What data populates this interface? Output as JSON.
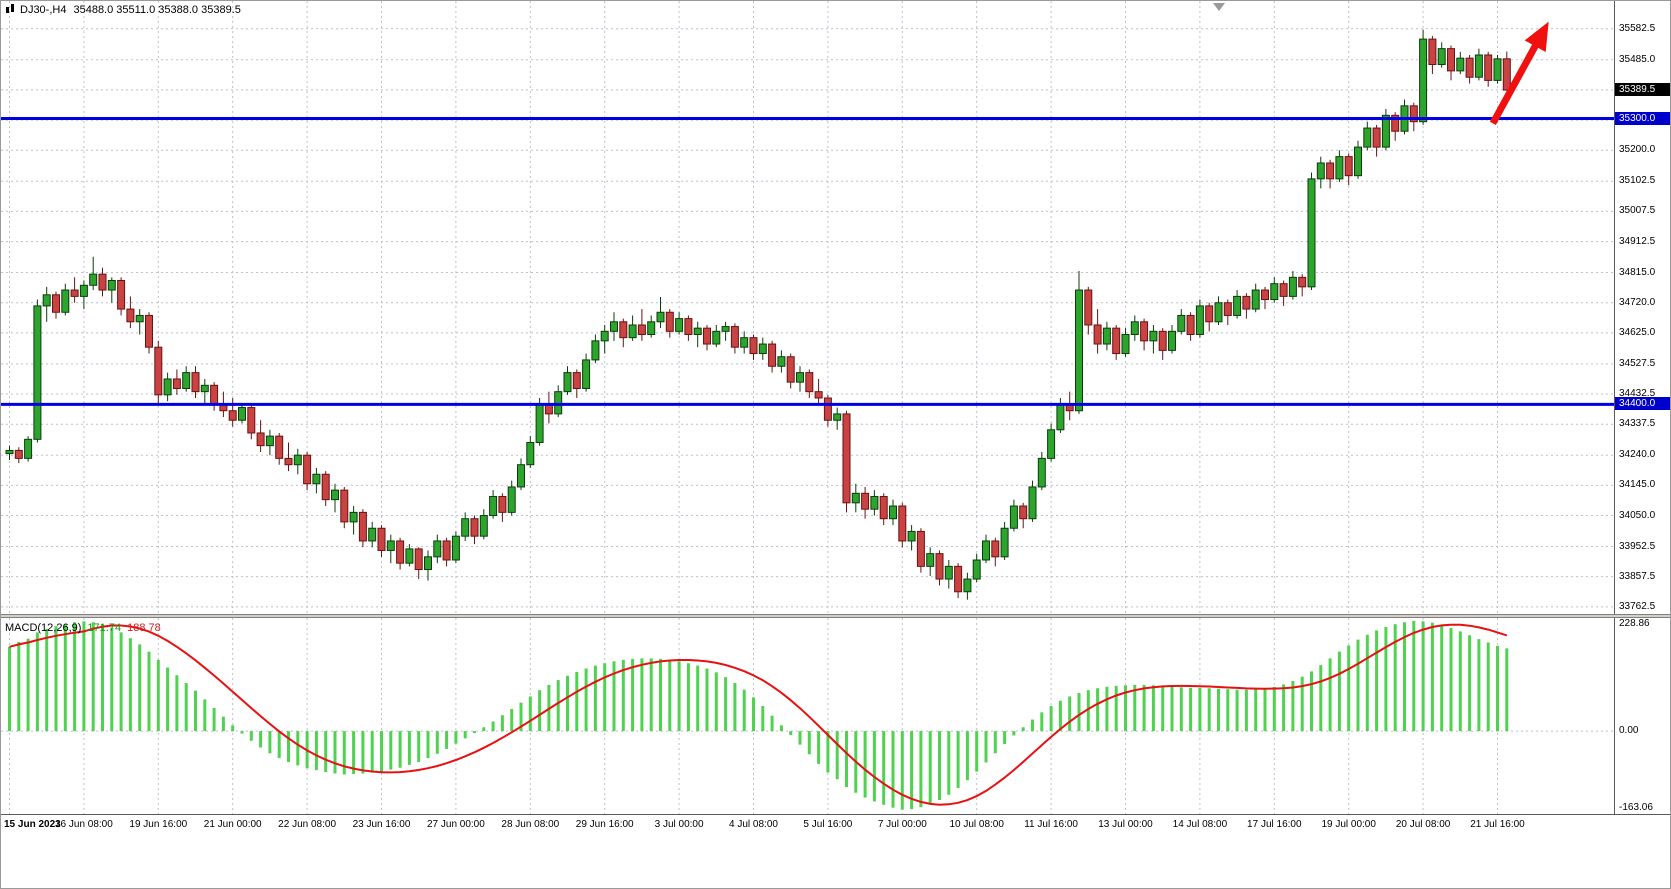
{
  "header": {
    "symbol": "DJ30-,H4",
    "ohlc": "35488.0 35511.0 35388.0 35389.5"
  },
  "colors": {
    "background": "#ffffff",
    "grid": "#bfbfcf",
    "bull_fill": "#2da42d",
    "bull_stroke": "#0b3d0b",
    "bear_fill": "#c94343",
    "bear_stroke": "#6b1212",
    "hline": "#0000e6",
    "current_tag_bg": "#000000",
    "line_tag_bg": "#0000cc",
    "macd_hist": "#4fd24f",
    "macd_signal": "#e81010",
    "arrow": "#f01010",
    "axis_text": "#000000"
  },
  "price_axis": {
    "labels": [
      "35582.5",
      "35485.0",
      "35200.0",
      "35102.5",
      "35007.5",
      "34912.5",
      "34815.0",
      "34720.0",
      "34625.0",
      "34527.5",
      "34432.5",
      "34337.5",
      "34240.0",
      "34145.0",
      "34050.0",
      "33952.5",
      "33857.5",
      "33762.5"
    ],
    "current_price": "35389.5",
    "line_tags": [
      "35300.0",
      "34400.0"
    ]
  },
  "time_axis": {
    "labels": [
      "15 Jun 2023",
      "16 Jun 08:00",
      "19 Jun 16:00",
      "21 Jun 00:00",
      "22 Jun 08:00",
      "23 Jun 16:00",
      "27 Jun 00:00",
      "28 Jun 08:00",
      "29 Jun 16:00",
      "3 Jul 00:00",
      "4 Jul 08:00",
      "5 Jul 16:00",
      "7 Jul 00:00",
      "10 Jul 08:00",
      "11 Jul 16:00",
      "13 Jul 00:00",
      "14 Jul 08:00",
      "17 Jul 16:00",
      "19 Jul 00:00",
      "20 Jul 08:00",
      "21 Jul 16:00"
    ]
  },
  "macd": {
    "name": "MACD(12,26,9)",
    "main_value": "171.74",
    "signal_value": "188.78",
    "axis_top": "228.86",
    "axis_zero": "0.00",
    "axis_bottom": "-163.06"
  },
  "chart_data": [
    {
      "type": "candlestick",
      "symbol": "DJ30-",
      "timeframe": "H4",
      "ylim": [
        33740,
        35670
      ],
      "grid_prices": [
        35582.5,
        35485.0,
        35390.0,
        35295.0,
        35200.0,
        35102.5,
        35007.5,
        34912.5,
        34815.0,
        34720.0,
        34625.0,
        34527.5,
        34432.5,
        34337.5,
        34240.0,
        34145.0,
        34050.0,
        33952.5,
        33857.5,
        33762.5
      ],
      "x_tick_step": 8,
      "x_tick_labels": [
        "15 Jun 2023",
        "16 Jun 08:00",
        "19 Jun 16:00",
        "21 Jun 00:00",
        "22 Jun 08:00",
        "23 Jun 16:00",
        "27 Jun 00:00",
        "28 Jun 08:00",
        "29 Jun 16:00",
        "3 Jul 00:00",
        "4 Jul 08:00",
        "5 Jul 16:00",
        "7 Jul 00:00",
        "10 Jul 08:00",
        "11 Jul 16:00",
        "13 Jul 00:00",
        "14 Jul 08:00",
        "17 Jul 16:00",
        "19 Jul 00:00",
        "20 Jul 08:00",
        "21 Jul 16:00"
      ],
      "hlines": [
        35300.0,
        34400.0
      ],
      "last_price": 35389.5,
      "annotations": [
        {
          "type": "arrow",
          "direction": "up-right",
          "from": {
            "bar": 159.5,
            "price": 35285
          },
          "to": {
            "bar": 165.5,
            "price": 35605
          }
        }
      ],
      "ohlc": [
        [
          34245,
          34270,
          34225,
          34255
        ],
        [
          34255,
          34265,
          34215,
          34230
        ],
        [
          34230,
          34300,
          34220,
          34290
        ],
        [
          34290,
          34730,
          34280,
          34710
        ],
        [
          34710,
          34770,
          34660,
          34745
        ],
        [
          34745,
          34755,
          34670,
          34690
        ],
        [
          34690,
          34780,
          34680,
          34760
        ],
        [
          34760,
          34800,
          34720,
          34740
        ],
        [
          34740,
          34790,
          34700,
          34775
        ],
        [
          34775,
          34865,
          34760,
          34810
        ],
        [
          34810,
          34830,
          34740,
          34760
        ],
        [
          34760,
          34800,
          34720,
          34790
        ],
        [
          34790,
          34800,
          34680,
          34700
        ],
        [
          34700,
          34740,
          34640,
          34660
        ],
        [
          34660,
          34700,
          34620,
          34680
        ],
        [
          34680,
          34690,
          34560,
          34580
        ],
        [
          34580,
          34600,
          34400,
          34430
        ],
        [
          34430,
          34500,
          34410,
          34480
        ],
        [
          34480,
          34510,
          34430,
          34450
        ],
        [
          34450,
          34520,
          34440,
          34500
        ],
        [
          34500,
          34520,
          34420,
          34440
        ],
        [
          34440,
          34480,
          34400,
          34460
        ],
        [
          34460,
          34470,
          34380,
          34400
        ],
        [
          34400,
          34440,
          34360,
          34380
        ],
        [
          34380,
          34420,
          34330,
          34350
        ],
        [
          34350,
          34400,
          34340,
          34390
        ],
        [
          34390,
          34400,
          34290,
          34310
        ],
        [
          34310,
          34350,
          34250,
          34270
        ],
        [
          34270,
          34320,
          34240,
          34300
        ],
        [
          34300,
          34310,
          34210,
          34230
        ],
        [
          34230,
          34280,
          34190,
          34210
        ],
        [
          34210,
          34260,
          34180,
          34240
        ],
        [
          34240,
          34250,
          34130,
          34150
        ],
        [
          34150,
          34200,
          34120,
          34180
        ],
        [
          34180,
          34190,
          34080,
          34100
        ],
        [
          34100,
          34150,
          34060,
          34130
        ],
        [
          34130,
          34140,
          34010,
          34030
        ],
        [
          34030,
          34080,
          33990,
          34060
        ],
        [
          34060,
          34070,
          33950,
          33970
        ],
        [
          33970,
          34030,
          33950,
          34010
        ],
        [
          34010,
          34020,
          33920,
          33940
        ],
        [
          33940,
          33990,
          33900,
          33970
        ],
        [
          33970,
          33980,
          33880,
          33900
        ],
        [
          33900,
          33960,
          33890,
          33945
        ],
        [
          33945,
          33950,
          33850,
          33880
        ],
        [
          33880,
          33940,
          33845,
          33920
        ],
        [
          33920,
          33990,
          33900,
          33970
        ],
        [
          33970,
          33980,
          33890,
          33910
        ],
        [
          33910,
          34000,
          33900,
          33985
        ],
        [
          33985,
          34060,
          33970,
          34040
        ],
        [
          34040,
          34050,
          33960,
          33985
        ],
        [
          33985,
          34070,
          33975,
          34050
        ],
        [
          34050,
          34130,
          34040,
          34110
        ],
        [
          34110,
          34120,
          34030,
          34060
        ],
        [
          34060,
          34160,
          34050,
          34140
        ],
        [
          34140,
          34230,
          34130,
          34210
        ],
        [
          34210,
          34300,
          34200,
          34280
        ],
        [
          34280,
          34420,
          34270,
          34400
        ],
        [
          34400,
          34440,
          34340,
          34370
        ],
        [
          34370,
          34460,
          34360,
          34440
        ],
        [
          34440,
          34520,
          34430,
          34500
        ],
        [
          34500,
          34510,
          34420,
          34450
        ],
        [
          34450,
          34560,
          34440,
          34540
        ],
        [
          34540,
          34620,
          34530,
          34600
        ],
        [
          34600,
          34650,
          34560,
          34630
        ],
        [
          34630,
          34690,
          34600,
          34660
        ],
        [
          34660,
          34670,
          34580,
          34610
        ],
        [
          34610,
          34680,
          34600,
          34650
        ],
        [
          34650,
          34700,
          34600,
          34620
        ],
        [
          34620,
          34680,
          34610,
          34660
        ],
        [
          34660,
          34738,
          34640,
          34690
        ],
        [
          34690,
          34700,
          34610,
          34630
        ],
        [
          34630,
          34690,
          34620,
          34670
        ],
        [
          34670,
          34680,
          34600,
          34620
        ],
        [
          34620,
          34660,
          34580,
          34640
        ],
        [
          34640,
          34650,
          34570,
          34590
        ],
        [
          34590,
          34650,
          34580,
          34630
        ],
        [
          34630,
          34660,
          34600,
          34645
        ],
        [
          34645,
          34655,
          34560,
          34580
        ],
        [
          34580,
          34630,
          34560,
          34610
        ],
        [
          34610,
          34620,
          34540,
          34560
        ],
        [
          34560,
          34610,
          34540,
          34590
        ],
        [
          34590,
          34600,
          34500,
          34520
        ],
        [
          34520,
          34570,
          34500,
          34550
        ],
        [
          34550,
          34560,
          34450,
          34470
        ],
        [
          34470,
          34520,
          34440,
          34500
        ],
        [
          34500,
          34510,
          34420,
          34440
        ],
        [
          34440,
          34480,
          34400,
          34420
        ],
        [
          34420,
          34430,
          34330,
          34350
        ],
        [
          34350,
          34390,
          34320,
          34370
        ],
        [
          34370,
          34380,
          34060,
          34090
        ],
        [
          34090,
          34150,
          34060,
          34120
        ],
        [
          34120,
          34140,
          34040,
          34070
        ],
        [
          34070,
          34130,
          34050,
          34110
        ],
        [
          34110,
          34120,
          34020,
          34040
        ],
        [
          34040,
          34100,
          34020,
          34080
        ],
        [
          34080,
          34090,
          33950,
          33970
        ],
        [
          33970,
          34020,
          33940,
          34000
        ],
        [
          34000,
          34010,
          33870,
          33890
        ],
        [
          33890,
          33950,
          33860,
          33930
        ],
        [
          33930,
          33940,
          33830,
          33850
        ],
        [
          33850,
          33910,
          33820,
          33890
        ],
        [
          33890,
          33900,
          33790,
          33810
        ],
        [
          33810,
          33870,
          33785,
          33850
        ],
        [
          33850,
          33930,
          33840,
          33910
        ],
        [
          33910,
          33990,
          33900,
          33970
        ],
        [
          33970,
          33980,
          33890,
          33920
        ],
        [
          33920,
          34030,
          33910,
          34010
        ],
        [
          34010,
          34100,
          34000,
          34080
        ],
        [
          34080,
          34090,
          34010,
          34040
        ],
        [
          34040,
          34160,
          34030,
          34140
        ],
        [
          34140,
          34250,
          34130,
          34230
        ],
        [
          34230,
          34340,
          34220,
          34320
        ],
        [
          34320,
          34420,
          34310,
          34400
        ],
        [
          34400,
          34440,
          34350,
          34380
        ],
        [
          34380,
          34820,
          34370,
          34760
        ],
        [
          34760,
          34770,
          34620,
          34650
        ],
        [
          34650,
          34700,
          34560,
          34590
        ],
        [
          34590,
          34660,
          34570,
          34640
        ],
        [
          34640,
          34650,
          34540,
          34560
        ],
        [
          34560,
          34640,
          34550,
          34620
        ],
        [
          34620,
          34680,
          34600,
          34660
        ],
        [
          34660,
          34670,
          34570,
          34600
        ],
        [
          34600,
          34650,
          34560,
          34630
        ],
        [
          34630,
          34640,
          34540,
          34570
        ],
        [
          34570,
          34650,
          34560,
          34630
        ],
        [
          34630,
          34700,
          34620,
          34680
        ],
        [
          34680,
          34690,
          34600,
          34620
        ],
        [
          34620,
          34730,
          34610,
          34710
        ],
        [
          34710,
          34720,
          34630,
          34660
        ],
        [
          34660,
          34740,
          34650,
          34720
        ],
        [
          34720,
          34730,
          34650,
          34680
        ],
        [
          34680,
          34760,
          34670,
          34740
        ],
        [
          34740,
          34750,
          34670,
          34700
        ],
        [
          34700,
          34780,
          34690,
          34760
        ],
        [
          34760,
          34770,
          34700,
          34730
        ],
        [
          34730,
          34800,
          34720,
          34780
        ],
        [
          34780,
          34790,
          34710,
          34740
        ],
        [
          34740,
          34820,
          34730,
          34800
        ],
        [
          34800,
          34810,
          34740,
          34770
        ],
        [
          34770,
          35130,
          34760,
          35110
        ],
        [
          35110,
          35180,
          35080,
          35160
        ],
        [
          35160,
          35170,
          35080,
          35110
        ],
        [
          35110,
          35200,
          35100,
          35180
        ],
        [
          35180,
          35190,
          35090,
          35120
        ],
        [
          35120,
          35230,
          35110,
          35210
        ],
        [
          35210,
          35290,
          35200,
          35270
        ],
        [
          35270,
          35280,
          35180,
          35210
        ],
        [
          35210,
          35330,
          35200,
          35310
        ],
        [
          35310,
          35320,
          35230,
          35260
        ],
        [
          35260,
          35360,
          35250,
          35340
        ],
        [
          35340,
          35350,
          35260,
          35290
        ],
        [
          35290,
          35580,
          35280,
          35550
        ],
        [
          35550,
          35560,
          35440,
          35470
        ],
        [
          35470,
          35540,
          35460,
          35520
        ],
        [
          35520,
          35530,
          35420,
          35450
        ],
        [
          35450,
          35510,
          35440,
          35490
        ],
        [
          35490,
          35500,
          35410,
          35430
        ],
        [
          35430,
          35520,
          35420,
          35500
        ],
        [
          35500,
          35510,
          35400,
          35420
        ],
        [
          35420,
          35500,
          35410,
          35488
        ],
        [
          35488,
          35511,
          35388,
          35389.5
        ]
      ]
    },
    {
      "type": "bar",
      "name": "MACD(12,26,9)",
      "ylim": [
        -163.06,
        228.86
      ],
      "signal_period": 9,
      "current_main": 171.74,
      "current_signal": 188.78,
      "axis_labels": [
        228.86,
        0.0,
        -163.06
      ],
      "values": [
        175,
        185,
        192,
        205,
        212,
        218,
        222,
        226,
        228,
        226,
        222,
        215,
        205,
        193,
        180,
        165,
        148,
        132,
        116,
        100,
        84,
        66,
        48,
        30,
        12,
        -5,
        -20,
        -34,
        -46,
        -56,
        -64,
        -71,
        -77,
        -81,
        -85,
        -88,
        -90,
        -89,
        -88,
        -86,
        -84,
        -80,
        -76,
        -70,
        -64,
        -56,
        -47,
        -37,
        -26,
        -15,
        -4,
        8,
        20,
        33,
        46,
        59,
        72,
        85,
        96,
        106,
        115,
        123,
        130,
        136,
        141,
        145,
        148,
        150,
        151,
        151,
        150,
        148,
        145,
        141,
        136,
        130,
        122,
        112,
        100,
        86,
        70,
        52,
        32,
        12,
        -8,
        -28,
        -48,
        -68,
        -86,
        -100,
        -116,
        -128,
        -138,
        -146,
        -153,
        -159,
        -163.06,
        -162,
        -158,
        -152,
        -143,
        -132,
        -118,
        -102,
        -84,
        -65,
        -46,
        -27,
        -9,
        8,
        24,
        39,
        52,
        63,
        72,
        79,
        85,
        89,
        92,
        94,
        95,
        96,
        96,
        95,
        94,
        92,
        91,
        90,
        90,
        89,
        88,
        87,
        86,
        86,
        87,
        89,
        92,
        97,
        104,
        113,
        124,
        137,
        151,
        165,
        178,
        190,
        200,
        209,
        216,
        222,
        226,
        228.86,
        228,
        225,
        220,
        214,
        207,
        199,
        191,
        184,
        177,
        171.74
      ]
    }
  ]
}
